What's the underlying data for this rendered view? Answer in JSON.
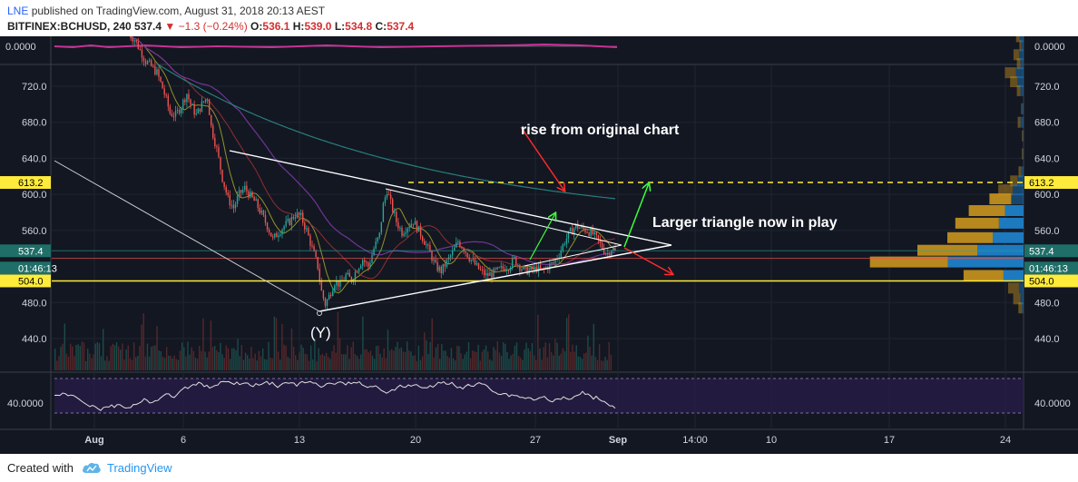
{
  "header": {
    "author": "LNE",
    "published_text": "published on TradingView.com, August 31, 2018 20:13 AEST",
    "symbol": "BITFINEX:BCHUSD, 240",
    "last": "537.4",
    "change_arrow": "▼",
    "change": "−1.3 (−0.24%)",
    "o_label": "O:",
    "o_value": "536.1",
    "h_label": "H:",
    "h_value": "539.0",
    "l_label": "L:",
    "l_value": "534.8",
    "c_label": "C:",
    "c_value": "537.4"
  },
  "footer": {
    "created_with": "Created with",
    "brand": "TradingView",
    "logo_icon": "cloud-icon"
  },
  "colors": {
    "background": "#131722",
    "up": "#26a69a",
    "down": "#ef5350",
    "triangle": "#ffffff",
    "yellow": "#ffeb3b",
    "annotation": "#ffffff",
    "arrow_red": "#ff2a2a",
    "arrow_green": "#3cff3c",
    "rsi_fill": "#2a1e4a"
  },
  "chart_data": {
    "type": "candlestick",
    "symbol": "BITFINEX:BCHUSD",
    "interval": "240",
    "ylim": [
      405,
      780
    ],
    "y_ticks": [
      720.0,
      680.0,
      640.0,
      600.0,
      560.0,
      480.0,
      440.0
    ],
    "y_tick_labels": [
      "720.0",
      "680.0",
      "640.0",
      "600.0",
      "560.0",
      "480.0",
      "440.0"
    ],
    "x_tick_labels": [
      "Aug",
      "6",
      "13",
      "20",
      "27",
      "Sep",
      "14:00",
      "10",
      "17",
      "24"
    ],
    "price_badges": [
      {
        "label": "613.2",
        "value": 613.2
      },
      {
        "label": "537.4",
        "value": 537.4
      },
      {
        "label": "01:46:13",
        "value": 529.0
      },
      {
        "label": "504.0",
        "value": 504.0
      }
    ],
    "indicator_pane": {
      "label": "0.0000",
      "right_label": "0.0000"
    },
    "rsi_pane": {
      "label": "40.0000",
      "right_label": "40.0000"
    },
    "annotations": [
      {
        "text": "rise from original chart"
      },
      {
        "text": "Larger triangle now in play"
      },
      {
        "text": "(Y)"
      }
    ],
    "close_path": [
      [
        0,
        778
      ],
      [
        3,
        772
      ],
      [
        6,
        760
      ],
      [
        9,
        748
      ],
      [
        12,
        742
      ],
      [
        15,
        735
      ],
      [
        18,
        718
      ],
      [
        20,
        705
      ],
      [
        22,
        690
      ],
      [
        25,
        688
      ],
      [
        28,
        698
      ],
      [
        31,
        712
      ],
      [
        33,
        700
      ],
      [
        36,
        688
      ],
      [
        39,
        700
      ],
      [
        42,
        708
      ],
      [
        44,
        675
      ],
      [
        47,
        650
      ],
      [
        50,
        618
      ],
      [
        53,
        595
      ],
      [
        56,
        585
      ],
      [
        59,
        600
      ],
      [
        62,
        607
      ],
      [
        65,
        598
      ],
      [
        68,
        590
      ],
      [
        71,
        578
      ],
      [
        74,
        565
      ],
      [
        77,
        550
      ],
      [
        80,
        558
      ],
      [
        83,
        565
      ],
      [
        86,
        570
      ],
      [
        89,
        578
      ],
      [
        92,
        575
      ],
      [
        95,
        560
      ],
      [
        98,
        540
      ],
      [
        101,
        520
      ],
      [
        103,
        492
      ],
      [
        105,
        478
      ],
      [
        107,
        487
      ],
      [
        110,
        503
      ],
      [
        113,
        500
      ],
      [
        116,
        510
      ],
      [
        119,
        505
      ],
      [
        122,
        518
      ],
      [
        125,
        528
      ],
      [
        128,
        520
      ],
      [
        131,
        540
      ],
      [
        134,
        555
      ],
      [
        136,
        588
      ],
      [
        138,
        605
      ],
      [
        140,
        590
      ],
      [
        143,
        570
      ],
      [
        146,
        558
      ],
      [
        149,
        565
      ],
      [
        152,
        570
      ],
      [
        155,
        560
      ],
      [
        158,
        548
      ],
      [
        161,
        535
      ],
      [
        164,
        520
      ],
      [
        167,
        515
      ],
      [
        170,
        525
      ],
      [
        173,
        535
      ],
      [
        176,
        548
      ],
      [
        179,
        540
      ],
      [
        182,
        530
      ],
      [
        185,
        522
      ],
      [
        188,
        515
      ],
      [
        191,
        510
      ],
      [
        194,
        512
      ],
      [
        197,
        515
      ],
      [
        200,
        518
      ],
      [
        203,
        520
      ],
      [
        206,
        528
      ],
      [
        209,
        520
      ],
      [
        212,
        515
      ],
      [
        215,
        516
      ],
      [
        218,
        518
      ],
      [
        221,
        515
      ],
      [
        224,
        520
      ],
      [
        227,
        524
      ],
      [
        230,
        534
      ],
      [
        233,
        548
      ],
      [
        236,
        558
      ],
      [
        239,
        565
      ],
      [
        242,
        562
      ],
      [
        245,
        560
      ],
      [
        248,
        556
      ],
      [
        251,
        548
      ],
      [
        254,
        538
      ],
      [
        256,
        534
      ],
      [
        258,
        540
      ],
      [
        260,
        537.4
      ]
    ],
    "volume_profile": [
      {
        "price": 775,
        "up": 4,
        "down": 5
      },
      {
        "price": 765,
        "up": 2,
        "down": 3
      },
      {
        "price": 755,
        "up": 6,
        "down": 6
      },
      {
        "price": 745,
        "up": 4,
        "down": 4
      },
      {
        "price": 735,
        "up": 12,
        "down": 10
      },
      {
        "price": 725,
        "up": 8,
        "down": 8
      },
      {
        "price": 715,
        "up": 4,
        "down": 4
      },
      {
        "price": 695,
        "up": 1,
        "down": 2
      },
      {
        "price": 680,
        "up": 3,
        "down": 4
      },
      {
        "price": 665,
        "up": 1,
        "down": 1
      },
      {
        "price": 645,
        "up": 1,
        "down": 1
      },
      {
        "price": 625,
        "up": 3,
        "down": 3
      },
      {
        "price": 615,
        "up": 8,
        "down": 8
      },
      {
        "price": 605,
        "up": 16,
        "down": 14
      },
      {
        "price": 595,
        "up": 24,
        "down": 16
      },
      {
        "price": 582,
        "up": 40,
        "down": 24
      },
      {
        "price": 568,
        "up": 48,
        "down": 32
      },
      {
        "price": 552,
        "up": 50,
        "down": 40
      },
      {
        "price": 538,
        "up": 66,
        "down": 60
      },
      {
        "price": 525,
        "up": 86,
        "down": 98
      },
      {
        "price": 510,
        "up": 44,
        "down": 26
      },
      {
        "price": 496,
        "up": 12,
        "down": 6
      },
      {
        "price": 484,
        "up": 8,
        "down": 4
      },
      {
        "price": 474,
        "up": 4,
        "down": 2
      }
    ]
  }
}
